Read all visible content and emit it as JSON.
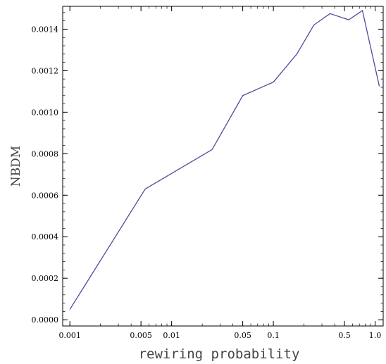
{
  "chart_data": {
    "type": "line",
    "xlabel": "rewiring probability",
    "ylabel": "NBDM",
    "x_scale": "log",
    "xlim": [
      0.00085,
      1.2
    ],
    "ylim": [
      -3e-05,
      0.00151
    ],
    "x_ticks": [
      {
        "value": 0.001,
        "label": "0.001"
      },
      {
        "value": 0.005,
        "label": "0.005"
      },
      {
        "value": 0.01,
        "label": "0.01"
      },
      {
        "value": 0.05,
        "label": "0.05"
      },
      {
        "value": 0.1,
        "label": "0.1"
      },
      {
        "value": 0.5,
        "label": "0.5"
      },
      {
        "value": 1.0,
        "label": "1.0"
      }
    ],
    "y_ticks": [
      {
        "value": 0.0,
        "label": "0.0000"
      },
      {
        "value": 0.0002,
        "label": "0.0002"
      },
      {
        "value": 0.0004,
        "label": "0.0004"
      },
      {
        "value": 0.0006,
        "label": "0.0006"
      },
      {
        "value": 0.0008,
        "label": "0.0008"
      },
      {
        "value": 0.001,
        "label": "0.0010"
      },
      {
        "value": 0.0012,
        "label": "0.0012"
      },
      {
        "value": 0.0014,
        "label": "0.0014"
      }
    ],
    "grid": false,
    "line_color": "#4b4b9b",
    "series": [
      {
        "x": [
          0.001,
          0.0055,
          0.025,
          0.05,
          0.1,
          0.17,
          0.25,
          0.36,
          0.55,
          0.75,
          1.1
        ],
        "y": [
          5e-05,
          0.00063,
          0.00082,
          0.00108,
          0.001145,
          0.00128,
          0.00142,
          0.001475,
          0.001445,
          0.00149,
          0.001125
        ]
      }
    ]
  }
}
